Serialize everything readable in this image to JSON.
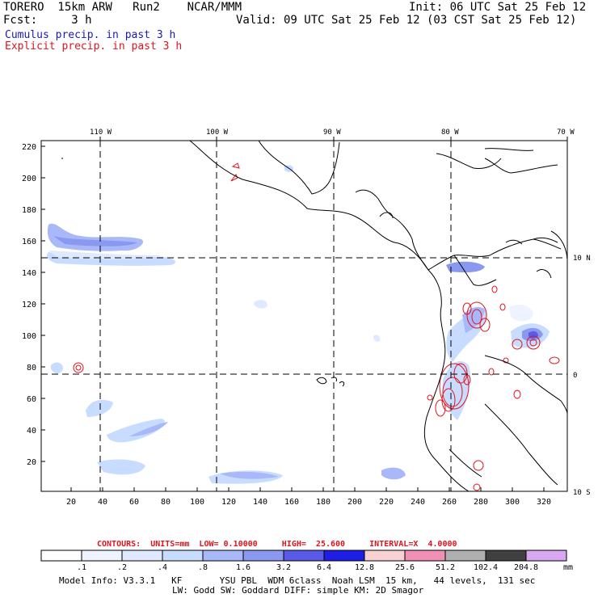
{
  "header": {
    "left1": "TORERO  15km ARW   Run2    NCAR/MMM",
    "left2": "Fcst:     3 h",
    "init": "Init: 06 UTC Sat 25 Feb 12",
    "valid": "Valid: 09 UTC Sat 25 Feb 12 (03 CST Sat 25 Feb 12)",
    "field1": "Cumulus precip. in past 3 h",
    "field2": "Explicit precip. in past 3 h",
    "field1_color": "#1a1ab4",
    "field2_color": "#e0141e"
  },
  "map": {
    "top_lon_labels": [
      "110 W",
      "100 W",
      "90 W",
      "80 W",
      "70 W"
    ],
    "right_lat_labels": [
      "10 N",
      "0",
      "10 S"
    ],
    "left_y_ticks": [
      "220",
      "200",
      "180",
      "160",
      "140",
      "120",
      "100",
      "80",
      "60",
      "40",
      "20"
    ],
    "bottom_x_ticks": [
      "20",
      "40",
      "60",
      "80",
      "100",
      "120",
      "140",
      "160",
      "180",
      "200",
      "220",
      "240",
      "260",
      "280",
      "300",
      "320"
    ]
  },
  "contours": {
    "text": "CONTOURS:  UNITS=mm  LOW= 0.10000     HIGH=  25.600     INTERVAL=X  4.0000"
  },
  "colorbar": {
    "labels": [
      ".1",
      ".2",
      ".4",
      ".8",
      "1.6",
      "3.2",
      "6.4",
      "12.8",
      "25.6",
      "51.2",
      "102.4",
      "204.8"
    ],
    "unit": "mm",
    "colors": [
      "#ffffff",
      "#eef4ff",
      "#dfe9ff",
      "#c8dcff",
      "#a8b8f8",
      "#8a98f0",
      "#5a5ae8",
      "#1e1ee6",
      "#f8d2d2",
      "#f090b4",
      "#b0b0b0",
      "#404040",
      "#d8a8f0"
    ]
  },
  "footer": {
    "line1": "Model Info: V3.3.1   KF       YSU PBL  WDM 6class  Noah LSM  15 km,   44 levels,  131 sec",
    "line2": "LW: Godd SW: Goddard DIFF: simple KM: 2D Smagor"
  }
}
